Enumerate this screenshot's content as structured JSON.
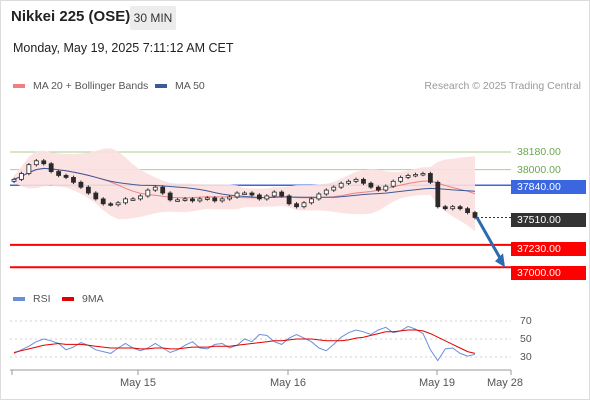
{
  "header": {
    "title": "Nikkei 225 (OSE)",
    "timeframe": "30 MIN",
    "datetime": "Monday, May 19, 2025 7:11:12 AM CET"
  },
  "legend": {
    "ma20_label": "MA 20 + Bollinger Bands",
    "ma50_label": "MA 50",
    "attribution": "Research © 2025 Trading Central"
  },
  "rsi_legend": {
    "rsi_label": "RSI",
    "ma9_label": "9MA"
  },
  "colors": {
    "ma20": "#f08080",
    "bollinger_fill": "#fbe0e0",
    "ma50": "#3d5a98",
    "rsi": "#6a8fd8",
    "rsi_ma": "#e00000",
    "resistance": "#a8d08d",
    "pivot": "#3a66e0",
    "support": "#ff0000",
    "candle": "#2a2a2a",
    "arrow": "#2b6bb0"
  },
  "price_levels": [
    {
      "value": "38180.00",
      "kind": "resistance"
    },
    {
      "value": "38000.00",
      "kind": "resistance"
    },
    {
      "value": "37840.00",
      "kind": "pivot"
    },
    {
      "value": "37510.00",
      "kind": "last"
    },
    {
      "value": "37230.00",
      "kind": "support"
    },
    {
      "value": "37000.00",
      "kind": "support"
    }
  ],
  "rsi_ticks": [
    "70",
    "50",
    "30"
  ],
  "x_axis": [
    "May 15",
    "May 16",
    "May 19",
    "May 28"
  ],
  "chart_data": {
    "type": "candlestick",
    "price_axis_ticks": [
      38180,
      38000,
      37840,
      37510,
      37230,
      37000
    ],
    "last_price": 37510,
    "close_series": [
      37900,
      37960,
      38050,
      38090,
      38060,
      37980,
      37940,
      37920,
      37870,
      37820,
      37760,
      37700,
      37650,
      37640,
      37660,
      37700,
      37700,
      37730,
      37790,
      37820,
      37760,
      37690,
      37690,
      37700,
      37680,
      37700,
      37710,
      37680,
      37700,
      37720,
      37760,
      37760,
      37740,
      37700,
      37730,
      37770,
      37730,
      37650,
      37620,
      37660,
      37700,
      37750,
      37790,
      37820,
      37860,
      37880,
      37900,
      37860,
      37820,
      37790,
      37830,
      37880,
      37920,
      37940,
      37950,
      37960,
      37870,
      37620,
      37600,
      37620,
      37600,
      37560,
      37510
    ],
    "rsi": {
      "name": "RSI",
      "range": [
        20,
        80
      ],
      "ticks": [
        70,
        50,
        30
      ],
      "values": [
        34,
        38,
        42,
        47,
        50,
        48,
        45,
        38,
        41,
        46,
        43,
        38,
        36,
        34,
        40,
        45,
        40,
        37,
        40,
        45,
        40,
        35,
        38,
        43,
        47,
        40,
        39,
        44,
        45,
        40,
        43,
        50,
        47,
        55,
        54,
        47,
        44,
        51,
        55,
        51,
        47,
        40,
        37,
        44,
        52,
        57,
        60,
        58,
        55,
        60,
        63,
        57,
        59,
        64,
        61,
        56,
        38,
        26,
        39,
        40,
        34,
        31,
        33
      ]
    },
    "rsi_ma": {
      "name": "9MA",
      "values": [
        35,
        37,
        39,
        41,
        43,
        44,
        45,
        44,
        44,
        44,
        43,
        42,
        41,
        40,
        40,
        40,
        40,
        39,
        39,
        40,
        40,
        39,
        39,
        40,
        41,
        41,
        41,
        42,
        42,
        42,
        43,
        44,
        45,
        46,
        47,
        48,
        48,
        49,
        50,
        50,
        50,
        49,
        48,
        48,
        48,
        49,
        51,
        52,
        54,
        56,
        58,
        58,
        59,
        60,
        60,
        59,
        56,
        52,
        48,
        44,
        40,
        36,
        34
      ]
    },
    "projection": {
      "from": 37510,
      "to": 37000
    }
  }
}
